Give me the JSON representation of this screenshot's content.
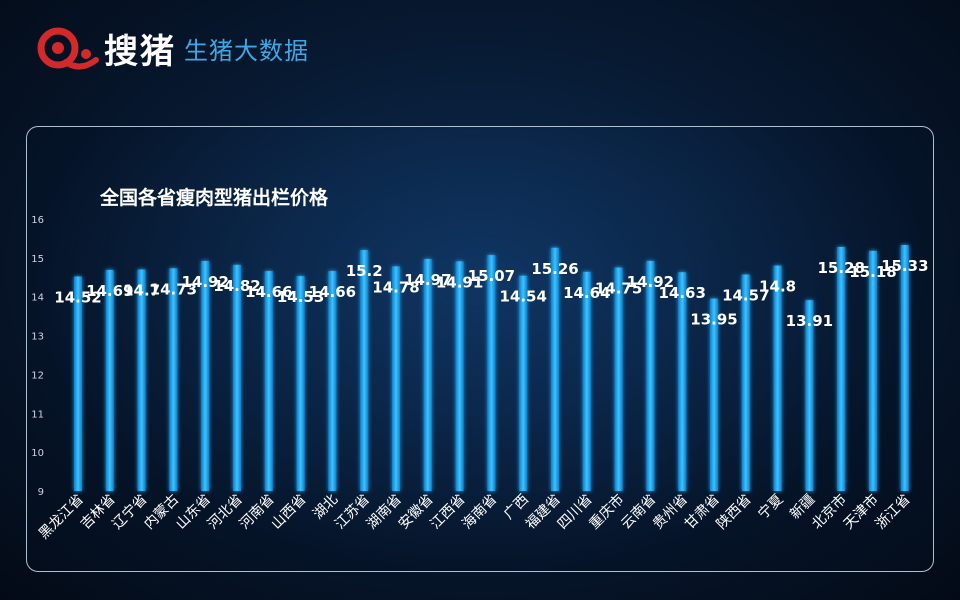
{
  "header": {
    "brand": "搜猪",
    "subtitle": "生猪大数据",
    "logo_icon": "pig-logo-icon"
  },
  "colors": {
    "accent": "#3ea8e6",
    "bar": "#19a6f0",
    "brand_red": "#d22a2a"
  },
  "chart_data": {
    "type": "bar",
    "title": "全国各省瘦肉型猪出栏价格",
    "xlabel": "",
    "ylabel": "",
    "ylim": [
      9,
      16
    ],
    "yticks": [
      9,
      10,
      11,
      12,
      13,
      14,
      15,
      16
    ],
    "grid": false,
    "legend": "none",
    "categories": [
      "黑龙江省",
      "吉林省",
      "辽宁省",
      "内蒙古",
      "山东省",
      "河北省",
      "河南省",
      "山西省",
      "湖北",
      "江苏省",
      "湖南省",
      "安徽省",
      "江西省",
      "海南省",
      "广西",
      "福建省",
      "四川省",
      "重庆市",
      "云南省",
      "贵州省",
      "甘肃省",
      "陕西省",
      "宁夏",
      "新疆",
      "北京市",
      "天津市",
      "浙江省"
    ],
    "values": [
      14.52,
      14.69,
      14.7,
      14.73,
      14.92,
      14.82,
      14.66,
      14.53,
      14.66,
      15.2,
      14.78,
      14.97,
      14.91,
      15.07,
      14.54,
      15.26,
      14.64,
      14.75,
      14.92,
      14.63,
      13.95,
      14.57,
      14.8,
      13.91,
      15.28,
      15.18,
      15.33
    ],
    "value_labels": [
      "14.52",
      "14.69",
      "14.7",
      "14.73",
      "14.92",
      "14.82",
      "14.66",
      "14.53",
      "14.66",
      "15.2",
      "14.78",
      "14.97",
      "14.91",
      "15.07",
      "14.54",
      "15.26",
      "14.64",
      "14.75",
      "14.92",
      "14.63",
      "13.95",
      "14.57",
      "14.8",
      "13.91",
      "15.28",
      "15.18",
      "15.33"
    ]
  }
}
